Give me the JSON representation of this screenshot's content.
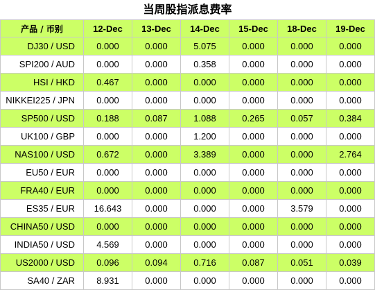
{
  "title": "当周股指派息费率",
  "header": {
    "instrument": "产品 / 币别",
    "dates": [
      "12-Dec",
      "13-Dec",
      "14-Dec",
      "15-Dec",
      "18-Dec",
      "19-Dec"
    ]
  },
  "rows": [
    {
      "name": "DJ30 / USD",
      "values": [
        "0.000",
        "0.000",
        "5.075",
        "0.000",
        "0.000",
        "0.000"
      ]
    },
    {
      "name": "SPI200 / AUD",
      "values": [
        "0.000",
        "0.000",
        "0.358",
        "0.000",
        "0.000",
        "0.000"
      ]
    },
    {
      "name": "HSI / HKD",
      "values": [
        "0.467",
        "0.000",
        "0.000",
        "0.000",
        "0.000",
        "0.000"
      ]
    },
    {
      "name": "NIKKEI225 / JPN",
      "values": [
        "0.000",
        "0.000",
        "0.000",
        "0.000",
        "0.000",
        "0.000"
      ]
    },
    {
      "name": "SP500 / USD",
      "values": [
        "0.188",
        "0.087",
        "1.088",
        "0.265",
        "0.057",
        "0.384"
      ]
    },
    {
      "name": "UK100 / GBP",
      "values": [
        "0.000",
        "0.000",
        "1.200",
        "0.000",
        "0.000",
        "0.000"
      ]
    },
    {
      "name": "NAS100 / USD",
      "values": [
        "0.672",
        "0.000",
        "3.389",
        "0.000",
        "0.000",
        "2.764"
      ]
    },
    {
      "name": "EU50 / EUR",
      "values": [
        "0.000",
        "0.000",
        "0.000",
        "0.000",
        "0.000",
        "0.000"
      ]
    },
    {
      "name": "FRA40 / EUR",
      "values": [
        "0.000",
        "0.000",
        "0.000",
        "0.000",
        "0.000",
        "0.000"
      ]
    },
    {
      "name": "ES35 / EUR",
      "values": [
        "16.643",
        "0.000",
        "0.000",
        "0.000",
        "3.579",
        "0.000"
      ]
    },
    {
      "name": "CHINA50 / USD",
      "values": [
        "0.000",
        "0.000",
        "0.000",
        "0.000",
        "0.000",
        "0.000"
      ]
    },
    {
      "name": "INDIA50 / USD",
      "values": [
        "4.569",
        "0.000",
        "0.000",
        "0.000",
        "0.000",
        "0.000"
      ]
    },
    {
      "name": "US2000 / USD",
      "values": [
        "0.096",
        "0.094",
        "0.716",
        "0.087",
        "0.051",
        "0.039"
      ]
    },
    {
      "name": "SA40 / ZAR",
      "values": [
        "8.931",
        "0.000",
        "0.000",
        "0.000",
        "0.000",
        "0.000"
      ]
    }
  ],
  "colors": {
    "accent_green": "#ccff66",
    "row_alt": "#ffffff",
    "border": "#c8c8c8"
  }
}
